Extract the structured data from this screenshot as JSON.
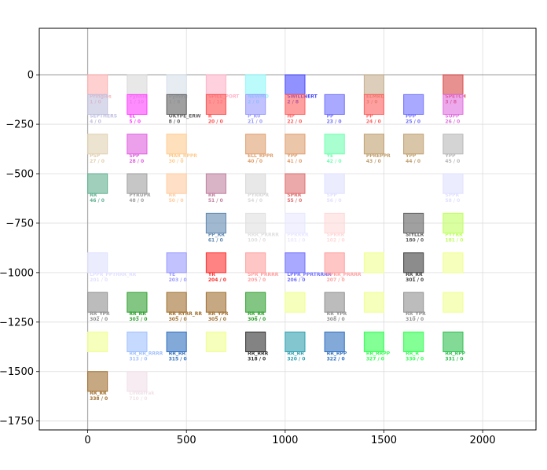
{
  "chart_data": {
    "type": "scatter",
    "title": "",
    "xlabel": "",
    "ylabel": "",
    "xlim": [
      -245,
      2270
    ],
    "ylim": [
      -1795,
      235
    ],
    "grid": true,
    "x_ticks": [
      0,
      500,
      1000,
      1500,
      2000
    ],
    "y_ticks": [
      0,
      -250,
      -500,
      -750,
      -1000,
      -1250,
      -1500,
      -1750
    ],
    "x_tick_labels": [
      "0",
      "500",
      "1000",
      "1500",
      "2000"
    ],
    "y_tick_labels": [
      "0",
      "−250",
      "−500",
      "−750",
      "−1000",
      "−1250",
      "−1500",
      "−1750"
    ],
    "reference_lines": {
      "x": 0,
      "y": 0
    },
    "marker_shape": "square",
    "points": [
      {
        "x": 50,
        "y": -50,
        "label": "Pringles",
        "sub": "1 / 0",
        "color": "#ffb0b0"
      },
      {
        "x": 250,
        "y": -50,
        "label": "Pynnis",
        "sub": "1 / 10",
        "color": "#d8d8d8"
      },
      {
        "x": 450,
        "y": -50,
        "label": "Pymms",
        "sub": "1 / 8",
        "color": "#d6e0ea"
      },
      {
        "x": 650,
        "y": -50,
        "label": "SPILL_PORT",
        "sub": "1 / 12",
        "color": "#ffb3c8"
      },
      {
        "x": 850,
        "y": -50,
        "label": "NEWMO",
        "sub": "2 / 0",
        "color": "#8ff8fa"
      },
      {
        "x": 1050,
        "y": -50,
        "label": "SWILLNERT",
        "sub": "2 / 8",
        "color": "#4848ff"
      },
      {
        "x": 1450,
        "y": -50,
        "label": "ELMRD",
        "sub": "3 / 0",
        "color": "#c4ae8c"
      },
      {
        "x": 1850,
        "y": -50,
        "label": "SPETCH",
        "sub": "3 / 8",
        "color": "#d84848"
      },
      {
        "x": 50,
        "y": -150,
        "label": "SEPTHERS",
        "sub": "4 / 0",
        "color": "#c0c0e0"
      },
      {
        "x": 250,
        "y": -150,
        "label": "EL",
        "sub": "5 / 0",
        "color": "#ff40ff"
      },
      {
        "x": 450,
        "y": -150,
        "label": "OKYPE_ERW",
        "sub": "8 / 0",
        "color": "#606060"
      },
      {
        "x": 650,
        "y": -150,
        "label": "R",
        "sub": "20 / 0",
        "color": "#ff5050"
      },
      {
        "x": 850,
        "y": -150,
        "label": "P_R0",
        "sub": "21 / 0",
        "color": "#9a9aff"
      },
      {
        "x": 1050,
        "y": -150,
        "label": "HP",
        "sub": "22 / 0",
        "color": "#ff6060"
      },
      {
        "x": 1250,
        "y": -150,
        "label": "PP",
        "sub": "23 / 0",
        "color": "#7070ff"
      },
      {
        "x": 1450,
        "y": -150,
        "label": "PP",
        "sub": "24 / 0",
        "color": "#ff6060"
      },
      {
        "x": 1650,
        "y": -150,
        "label": "PPP",
        "sub": "25 / 0",
        "color": "#7070ff"
      },
      {
        "x": 1850,
        "y": -150,
        "label": "SUPP",
        "sub": "26 / 0",
        "color": "#e070e0"
      },
      {
        "x": 50,
        "y": -350,
        "label": "PSP",
        "sub": "27 / 0",
        "color": "#e0d0b0"
      },
      {
        "x": 250,
        "y": -350,
        "label": "SPP",
        "sub": "28 / 0",
        "color": "#e060e0"
      },
      {
        "x": 450,
        "y": -350,
        "label": "MAR_RPPR",
        "sub": "30 / 0",
        "color": "#ffcc90"
      },
      {
        "x": 850,
        "y": -350,
        "label": "ELL_RPPR",
        "sub": "40 / 0",
        "color": "#e0a070"
      },
      {
        "x": 1050,
        "y": -350,
        "label": "YPP",
        "sub": "41 / 0",
        "color": "#e0a070"
      },
      {
        "x": 1250,
        "y": -350,
        "label": "YE",
        "sub": "42 / 0",
        "color": "#70ffb0"
      },
      {
        "x": 1450,
        "y": -350,
        "label": "PPREPPR",
        "sub": "43 / 0",
        "color": "#c0a070"
      },
      {
        "x": 1650,
        "y": -350,
        "label": "YPP",
        "sub": "44 / 0",
        "color": "#c0a070"
      },
      {
        "x": 1850,
        "y": -350,
        "label": "YPP",
        "sub": "45 / 0",
        "color": "#b8b8b8"
      },
      {
        "x": 50,
        "y": -550,
        "label": "RR",
        "sub": "46 / 0",
        "color": "#60b090"
      },
      {
        "x": 250,
        "y": -550,
        "label": "PYRUPR",
        "sub": "48 / 0",
        "color": "#a0a0a0"
      },
      {
        "x": 450,
        "y": -550,
        "label": "RR",
        "sub": "50 / 0",
        "color": "#ffcca0"
      },
      {
        "x": 650,
        "y": -550,
        "label": "RR",
        "sub": "51 / 0",
        "color": "#c080a0"
      },
      {
        "x": 850,
        "y": -550,
        "label": "PYRRPR",
        "sub": "54 / 0",
        "color": "#d8d8d8"
      },
      {
        "x": 1050,
        "y": -550,
        "label": "SPRR",
        "sub": "55 / 0",
        "color": "#e07070"
      },
      {
        "x": 1250,
        "y": -550,
        "label": "SPP",
        "sub": "56 / 0",
        "color": "#e0e0ff"
      },
      {
        "x": 1850,
        "y": -550,
        "label": "SPPR",
        "sub": "58 / 0",
        "color": "#e0e0ff"
      },
      {
        "x": 650,
        "y": -750,
        "label": "PP_RR",
        "sub": "61 / 0",
        "color": "#6088b0"
      },
      {
        "x": 850,
        "y": -750,
        "label": "RRR_PRRRR",
        "sub": "100 / 0",
        "color": "#e0e0e0"
      },
      {
        "x": 1050,
        "y": -750,
        "label": "PPRRRR",
        "sub": "101 / 0",
        "color": "#e8e8ff"
      },
      {
        "x": 1250,
        "y": -750,
        "label": "SPRRR",
        "sub": "102 / 0",
        "color": "#ffd8d8"
      },
      {
        "x": 1650,
        "y": -750,
        "label": "SIYLLR",
        "sub": "180 / 0",
        "color": "#606060"
      },
      {
        "x": 1850,
        "y": -750,
        "label": "PYYRR",
        "sub": "181 / 0",
        "color": "#c0ff60"
      },
      {
        "x": 50,
        "y": -950,
        "label": "LPPR_PPTRRR_RR",
        "sub": "201 / 0",
        "color": "#e0e0ff"
      },
      {
        "x": 450,
        "y": -950,
        "label": "YE",
        "sub": "203 / 0",
        "color": "#9a9aff"
      },
      {
        "x": 650,
        "y": -950,
        "label": "YR",
        "sub": "204 / 0",
        "color": "#ff3030"
      },
      {
        "x": 850,
        "y": -950,
        "label": "SPR_PRRRR",
        "sub": "205 / 0",
        "color": "#ffa0a0"
      },
      {
        "x": 1050,
        "y": -950,
        "label": "LPPR_PPRTRRRR",
        "sub": "206 / 0",
        "color": "#7070ff"
      },
      {
        "x": 1250,
        "y": -950,
        "label": "PPRR_PRRRR",
        "sub": "207 / 0",
        "color": "#ffa0a0"
      },
      {
        "x": 1450,
        "y": -950,
        "label": "",
        "sub": "",
        "color": "#f0ff90"
      },
      {
        "x": 1650,
        "y": -950,
        "label": "RR_RR",
        "sub": "301 / 0",
        "color": "#404040"
      },
      {
        "x": 1850,
        "y": -950,
        "label": "",
        "sub": "",
        "color": "#f0ff90"
      },
      {
        "x": 50,
        "y": -1150,
        "label": "RR_YPR",
        "sub": "302 / 0",
        "color": "#909090"
      },
      {
        "x": 250,
        "y": -1150,
        "label": "RR_RR",
        "sub": "303 / 0",
        "color": "#30a030"
      },
      {
        "x": 450,
        "y": -1150,
        "label": "RR_RYRR_RR",
        "sub": "305 / 0",
        "color": "#a07030"
      },
      {
        "x": 650,
        "y": -1150,
        "label": "RR_YPR",
        "sub": "305 / 0",
        "color": "#a07030"
      },
      {
        "x": 850,
        "y": -1150,
        "label": "RR_RR",
        "sub": "306 / 0",
        "color": "#30a030"
      },
      {
        "x": 1050,
        "y": -1150,
        "label": "",
        "sub": "",
        "color": "#f0ff90"
      },
      {
        "x": 1250,
        "y": -1150,
        "label": "RR_YPR",
        "sub": "308 / 0",
        "color": "#909090"
      },
      {
        "x": 1450,
        "y": -1150,
        "label": "",
        "sub": "",
        "color": "#f0ff90"
      },
      {
        "x": 1650,
        "y": -1150,
        "label": "RR_YPR",
        "sub": "310 / 0",
        "color": "#909090"
      },
      {
        "x": 1850,
        "y": -1150,
        "label": "",
        "sub": "",
        "color": "#f0ff90"
      },
      {
        "x": 50,
        "y": -1350,
        "label": "",
        "sub": "",
        "color": "#f0ff90"
      },
      {
        "x": 250,
        "y": -1350,
        "label": "RR_RR_RRRR",
        "sub": "313 / 0",
        "color": "#a0c0ff"
      },
      {
        "x": 450,
        "y": -1350,
        "label": "RR_RR",
        "sub": "315 / 0",
        "color": "#3070c0"
      },
      {
        "x": 650,
        "y": -1350,
        "label": "",
        "sub": "",
        "color": "#f0ff90"
      },
      {
        "x": 850,
        "y": -1350,
        "label": "RR_RRR",
        "sub": "318 / 0",
        "color": "#303030"
      },
      {
        "x": 1050,
        "y": -1350,
        "label": "RR_RR",
        "sub": "320 / 0",
        "color": "#30a0b0"
      },
      {
        "x": 1250,
        "y": -1350,
        "label": "RR_RPP",
        "sub": "322 / 0",
        "color": "#3070c0"
      },
      {
        "x": 1450,
        "y": -1350,
        "label": "RR_RRPP",
        "sub": "327 / 0",
        "color": "#30ff50"
      },
      {
        "x": 1650,
        "y": -1350,
        "label": "RR_R",
        "sub": "330 / 0",
        "color": "#30ff50"
      },
      {
        "x": 1850,
        "y": -1350,
        "label": "RR_RPP",
        "sub": "331 / 0",
        "color": "#30c050"
      },
      {
        "x": 50,
        "y": -1550,
        "label": "RR_RR",
        "sub": "338 / 0",
        "color": "#a07030"
      },
      {
        "x": 250,
        "y": -1550,
        "label": "Linkerrak",
        "sub": "710 / 0",
        "color": "#f0e0e8"
      }
    ]
  }
}
